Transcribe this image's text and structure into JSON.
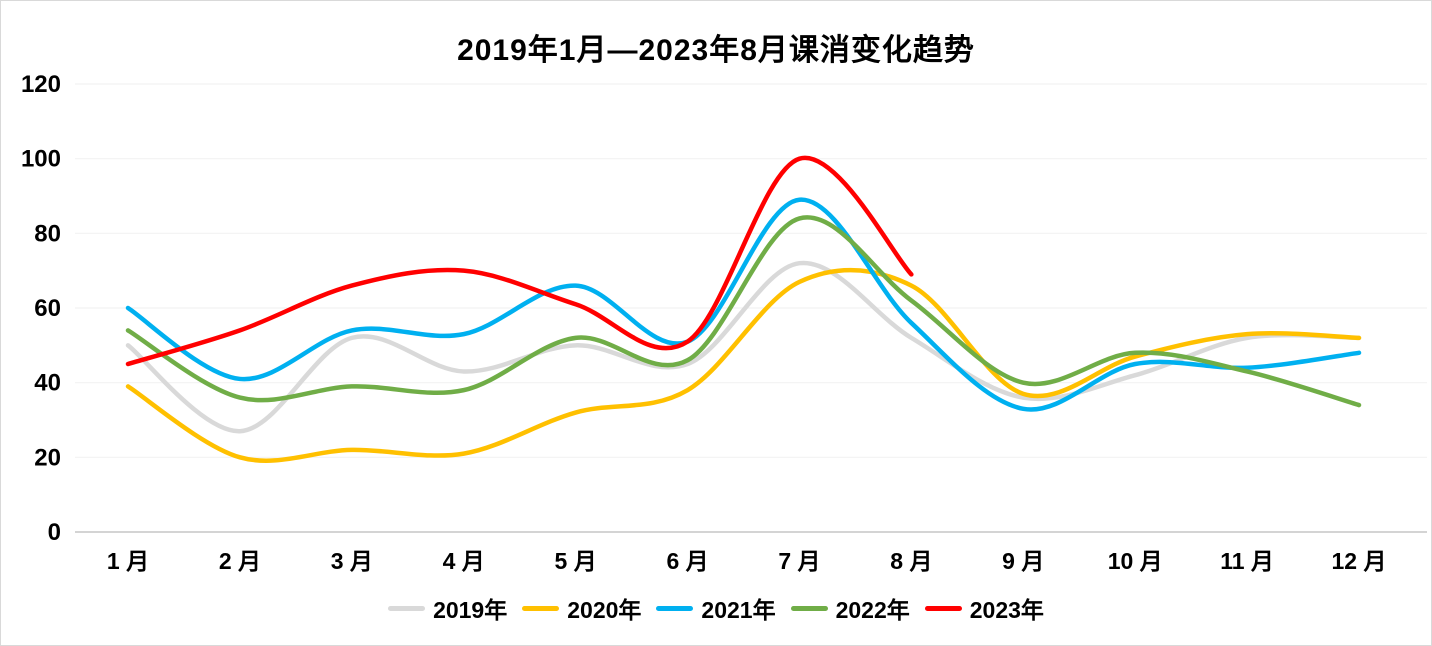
{
  "title": "2019年1月—2023年8月课消变化趋势",
  "chart_data": {
    "type": "line",
    "smooth": true,
    "title": "2019年1月—2023年8月课消变化趋势",
    "xlabel": "",
    "ylabel": "",
    "categories": [
      "1 月",
      "2 月",
      "3 月",
      "4 月",
      "5 月",
      "6 月",
      "7 月",
      "8 月",
      "9 月",
      "10 月",
      "11 月",
      "12 月"
    ],
    "series": [
      {
        "name": "2019年",
        "color": "#d9d9d9",
        "values": [
          50,
          27,
          52,
          43,
          50,
          45,
          72,
          52,
          36,
          42,
          52,
          52
        ]
      },
      {
        "name": "2020年",
        "color": "#ffc000",
        "values": [
          39,
          20,
          22,
          21,
          32,
          38,
          67,
          66,
          37,
          47,
          53,
          52
        ]
      },
      {
        "name": "2021年",
        "color": "#00b0f0",
        "values": [
          60,
          41,
          54,
          53,
          66,
          51,
          89,
          56,
          33,
          45,
          44,
          48
        ]
      },
      {
        "name": "2022年",
        "color": "#70ad47",
        "values": [
          54,
          36,
          39,
          38,
          52,
          46,
          84,
          62,
          40,
          48,
          43,
          34
        ]
      },
      {
        "name": "2023年",
        "color": "#ff0000",
        "values": [
          45,
          54,
          66,
          70,
          61,
          51,
          100,
          69
        ]
      }
    ],
    "ylim": [
      0,
      120
    ],
    "ytick_step": 20,
    "yticks": [
      "0",
      "20",
      "40",
      "60",
      "80",
      "100",
      "120"
    ],
    "grid": true,
    "legend_position": "bottom",
    "axis_line_color": "#c6c6c6",
    "gridline_color": "#f2f2f2",
    "text_color": "#000000"
  }
}
